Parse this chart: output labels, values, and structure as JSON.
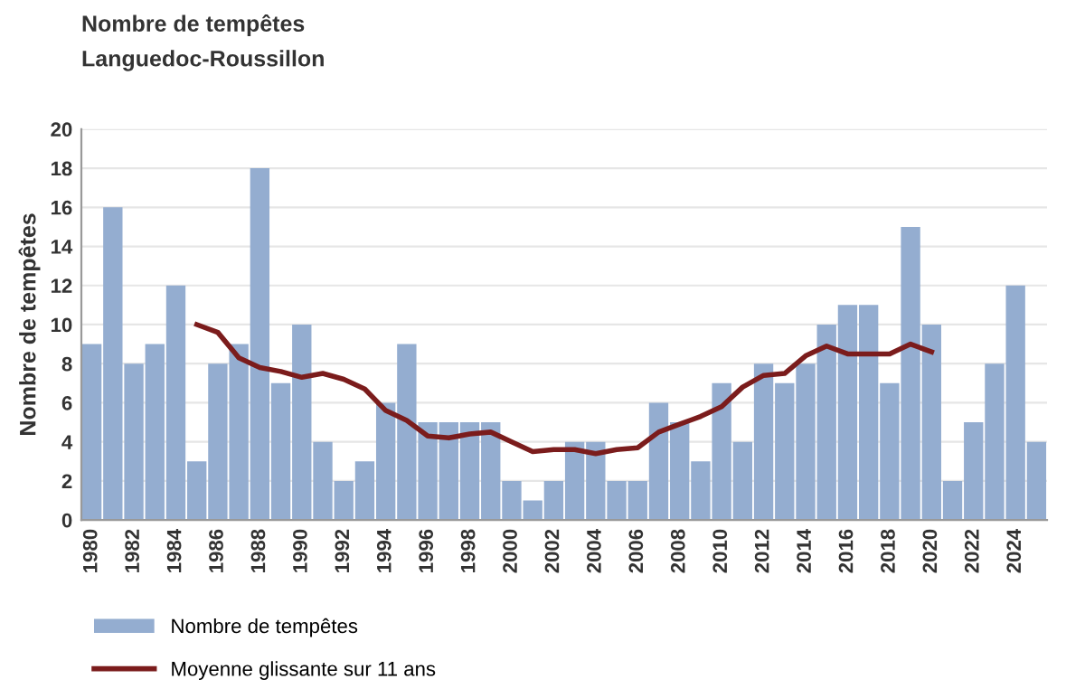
{
  "chart_data": {
    "type": "bar",
    "title": "Nombre de tempêtes",
    "subtitle": "Languedoc-Roussillon",
    "ylabel": "Nombre de tempêtes",
    "categories": [
      "1980",
      null,
      "1982",
      null,
      "1984",
      null,
      "1986",
      null,
      "1988",
      null,
      "1990",
      null,
      "1992",
      null,
      "1994",
      null,
      "1996",
      null,
      "1998",
      null,
      "2000",
      null,
      "2002",
      null,
      "2004",
      null,
      "2006",
      null,
      "2008",
      null,
      "2010",
      null,
      "2012",
      null,
      "2014",
      null,
      "2016",
      null,
      "2018",
      null,
      "2020",
      null,
      "2022",
      null,
      "2024",
      null
    ],
    "series": [
      {
        "name": "Nombre de tempêtes",
        "color": "#94add0",
        "values": [
          9,
          16,
          8,
          9,
          12,
          3,
          8,
          9,
          18,
          7,
          10,
          4,
          2,
          3,
          6,
          9,
          5,
          5,
          5,
          5,
          2,
          1,
          2,
          4,
          4,
          2,
          2,
          6,
          5,
          3,
          7,
          4,
          8,
          7,
          8,
          10,
          11,
          11,
          7,
          15,
          10,
          2,
          5,
          8,
          12,
          4
        ]
      },
      {
        "name": "Moyenne glissante sur 11 ans",
        "type": "line",
        "color": "#7b1c1c",
        "values": [
          null,
          null,
          null,
          null,
          null,
          10,
          9.6,
          8.3,
          7.8,
          7.6,
          7.3,
          7.5,
          7.2,
          6.7,
          5.6,
          5.1,
          4.3,
          4.2,
          4.4,
          4.5,
          4.0,
          3.5,
          3.6,
          3.6,
          3.4,
          3.6,
          3.7,
          4.5,
          4.9,
          5.3,
          5.8,
          6.8,
          7.4,
          7.5,
          8.4,
          8.9,
          8.5,
          8.5,
          8.5,
          9.0,
          8.6,
          null,
          null,
          null,
          null,
          null
        ]
      }
    ],
    "ylim": [
      0,
      20
    ],
    "yticks": [
      0,
      2,
      4,
      6,
      8,
      10,
      12,
      14,
      16,
      18,
      20
    ],
    "grid": "y",
    "legend": "bottom left"
  }
}
